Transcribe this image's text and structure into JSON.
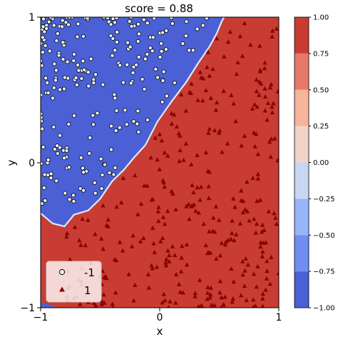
{
  "chart_data": {
    "type": "scatter",
    "title": "score = 0.88",
    "xlabel": "x",
    "ylabel": "y",
    "xlim": [
      -1,
      1
    ],
    "ylim": [
      -1,
      1
    ],
    "x_ticks": [
      "−1",
      "0",
      "1"
    ],
    "y_ticks": [
      "−1",
      "0",
      "1"
    ],
    "grid": false,
    "legend_position": "lower-left",
    "decision_regions": {
      "negative_color": "#4a60d4",
      "positive_color": "#c83c33",
      "boundary_color": "#dfe7f5",
      "boundary_points": [
        [
          -1.0,
          -0.35
        ],
        [
          -0.9,
          -0.42
        ],
        [
          -0.8,
          -0.44
        ],
        [
          -0.72,
          -0.36
        ],
        [
          -0.6,
          -0.33
        ],
        [
          -0.5,
          -0.25
        ],
        [
          -0.4,
          -0.13
        ],
        [
          -0.3,
          -0.05
        ],
        [
          -0.22,
          0.03
        ],
        [
          -0.12,
          0.12
        ],
        [
          -0.02,
          0.28
        ],
        [
          0.1,
          0.42
        ],
        [
          0.22,
          0.55
        ],
        [
          0.32,
          0.68
        ],
        [
          0.42,
          0.8
        ],
        [
          0.48,
          0.89
        ],
        [
          0.52,
          0.97
        ],
        [
          0.54,
          1.0
        ]
      ],
      "corner_region_bottom_left": [
        [
          -1.0,
          -0.96
        ],
        [
          -0.85,
          -1.0
        ],
        [
          -1.0,
          -1.0
        ]
      ]
    },
    "series": [
      {
        "name": "-1",
        "marker": "circle",
        "color": "#eef6ff"
      },
      {
        "name": "1",
        "marker": "triangle",
        "color": "#8b0000"
      }
    ],
    "n_neg": 220,
    "n_pos": 330,
    "colorbar": {
      "ticks": [
        "1.00",
        "0.75",
        "0.50",
        "0.25",
        "0.00",
        "−0.25",
        "−0.50",
        "−0.75",
        "−1.00"
      ],
      "levels": [
        {
          "from": -1.0,
          "to": -0.75,
          "color": "#4a60d4"
        },
        {
          "from": -0.75,
          "to": -0.5,
          "color": "#6f8ef0"
        },
        {
          "from": -0.5,
          "to": -0.25,
          "color": "#98b4fb"
        },
        {
          "from": -0.25,
          "to": 0.0,
          "color": "#c8d6f3"
        },
        {
          "from": 0.0,
          "to": 0.25,
          "color": "#f0d4c8"
        },
        {
          "from": 0.25,
          "to": 0.5,
          "color": "#f6b49a"
        },
        {
          "from": 0.5,
          "to": 0.75,
          "color": "#e7796a"
        },
        {
          "from": 0.75,
          "to": 1.0,
          "color": "#c83c33"
        }
      ]
    }
  }
}
